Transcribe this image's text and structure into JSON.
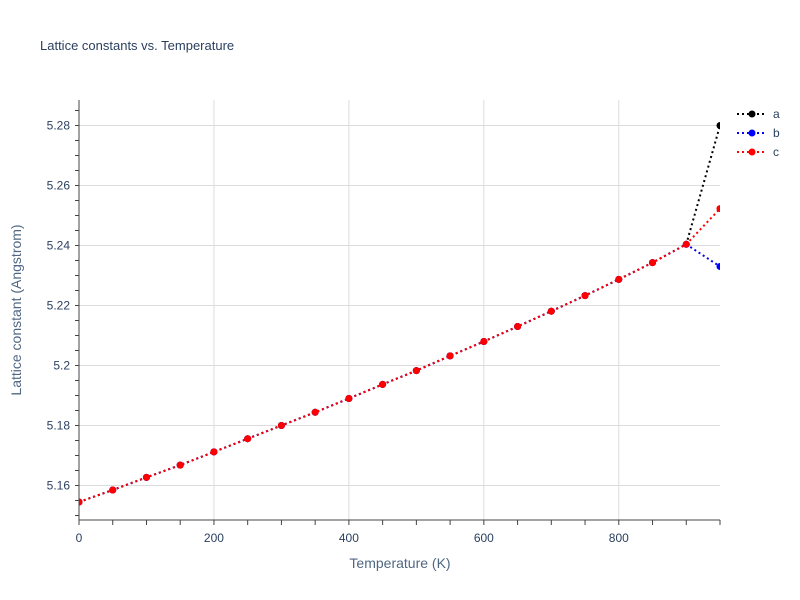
{
  "chart_data": {
    "type": "line",
    "title": "Lattice constants vs. Temperature",
    "xlabel": "Temperature (K)",
    "ylabel": "Lattice constant (Angstrom)",
    "xlim": [
      0,
      950
    ],
    "ylim": [
      5.1485,
      5.2885
    ],
    "x_ticks": [
      0,
      200,
      400,
      600,
      800
    ],
    "x_tick_labels": [
      "0",
      "200",
      "400",
      "600",
      "800"
    ],
    "y_ticks": [
      5.16,
      5.18,
      5.2,
      5.22,
      5.24,
      5.26,
      5.28
    ],
    "y_tick_labels": [
      "5.16",
      "5.18",
      "5.2",
      "5.22",
      "5.24",
      "5.26",
      "5.28"
    ],
    "grid": true,
    "legend_position": "top-right",
    "x": [
      0,
      50,
      100,
      150,
      200,
      250,
      300,
      350,
      400,
      450,
      500,
      550,
      600,
      650,
      700,
      750,
      800,
      850,
      900,
      950
    ],
    "series": [
      {
        "name": "a",
        "color": "#000000",
        "values": [
          5.1545,
          5.1585,
          5.1627,
          5.1668,
          5.1712,
          5.1756,
          5.18,
          5.1844,
          5.189,
          5.1937,
          5.1983,
          5.2032,
          5.208,
          5.213,
          5.2181,
          5.2233,
          5.2287,
          5.2343,
          5.2404,
          5.28
        ]
      },
      {
        "name": "b",
        "color": "#0000ff",
        "values": [
          5.1545,
          5.1585,
          5.1627,
          5.1668,
          5.1712,
          5.1756,
          5.18,
          5.1844,
          5.189,
          5.1937,
          5.1983,
          5.2032,
          5.208,
          5.213,
          5.2181,
          5.2233,
          5.2287,
          5.2343,
          5.2404,
          5.233
        ]
      },
      {
        "name": "c",
        "color": "#ff0000",
        "values": [
          5.1545,
          5.1585,
          5.1627,
          5.1668,
          5.1712,
          5.1756,
          5.18,
          5.1844,
          5.189,
          5.1937,
          5.1983,
          5.2032,
          5.208,
          5.213,
          5.2181,
          5.2233,
          5.2287,
          5.2343,
          5.2404,
          5.2523
        ]
      }
    ]
  }
}
